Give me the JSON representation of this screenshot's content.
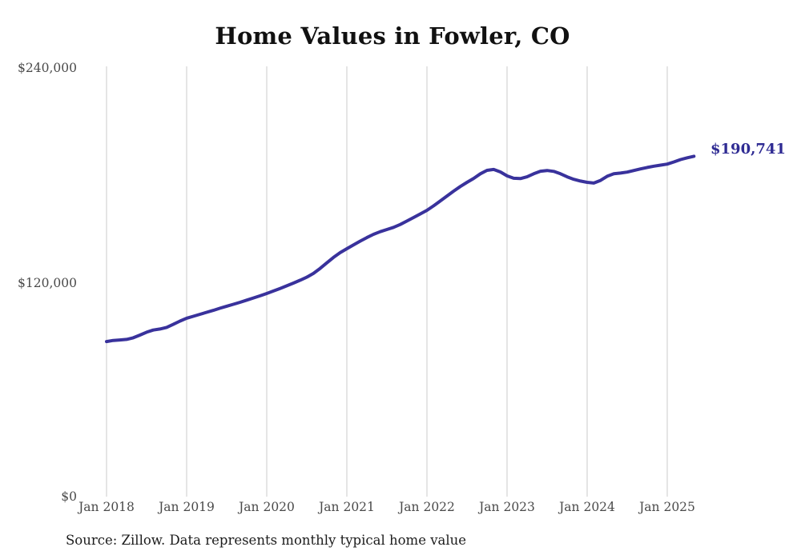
{
  "title": "Home Values in Fowler, CO",
  "source_note": "Source: Zillow. Data represents monthly typical home value",
  "end_label": "$190,741",
  "colors": {
    "line": "#39329c",
    "end_label_text": "#2f2b93",
    "grid": "#cbcbcb",
    "axis_text": "#4a4a4a",
    "title_text": "#111111",
    "background": "#ffffff"
  },
  "chart_data": {
    "type": "line",
    "title": "Home Values in Fowler, CO",
    "xlabel": "",
    "ylabel": "",
    "ylim": [
      0,
      240000
    ],
    "grid": "vertical-only",
    "legend": "none",
    "y_tick_labels": [
      "$240,000",
      "$120,000",
      "$0"
    ],
    "y_tick_values": [
      240000,
      120000,
      0
    ],
    "x_tick_labels": [
      "Jan 2018",
      "Jan 2019",
      "Jan 2020",
      "Jan 2021",
      "Jan 2022",
      "Jan 2023",
      "Jan 2024",
      "Jan 2025"
    ],
    "x_start": "2018-01",
    "x_frequency": "monthly",
    "last_point": {
      "date": "2025-05",
      "value": 190741,
      "label": "$190,741"
    },
    "series": [
      {
        "name": "Typical home value",
        "values": [
          87400,
          88000,
          88300,
          88600,
          89500,
          91000,
          92600,
          93800,
          94400,
          95300,
          97000,
          98800,
          100400,
          101500,
          102600,
          103700,
          104800,
          106000,
          107100,
          108200,
          109300,
          110500,
          111700,
          112900,
          114200,
          115600,
          117000,
          118500,
          120000,
          121600,
          123300,
          125400,
          128200,
          131300,
          134300,
          137000,
          139200,
          141300,
          143400,
          145400,
          147200,
          148700,
          149900,
          151100,
          152700,
          154600,
          156600,
          158600,
          160600,
          163100,
          165800,
          168600,
          171300,
          173900,
          176200,
          178400,
          181000,
          182900,
          183400,
          182000,
          179800,
          178500,
          178300,
          179300,
          181000,
          182400,
          182800,
          182300,
          181000,
          179300,
          177900,
          176900,
          176200,
          175800,
          177300,
          179600,
          181000,
          181400,
          181900,
          182800,
          183700,
          184500,
          185200,
          185800,
          186400,
          187600,
          188900,
          189900,
          190741
        ]
      }
    ]
  }
}
